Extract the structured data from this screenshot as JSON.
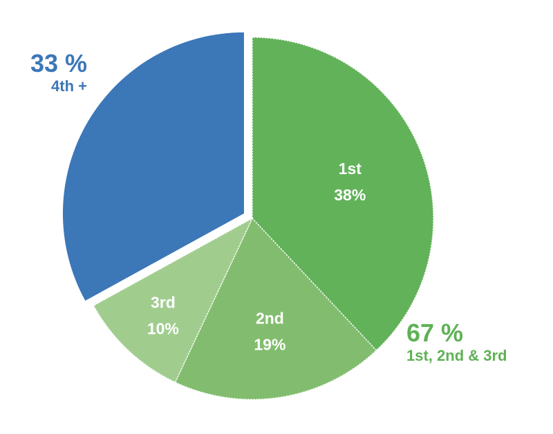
{
  "chart_data": {
    "type": "pie",
    "slices": [
      {
        "label": "1st",
        "value_text": "38%",
        "value": 38,
        "color": "#62b25a"
      },
      {
        "label": "2nd",
        "value_text": "19%",
        "value": 19,
        "color": "#82bd6f"
      },
      {
        "label": "3rd",
        "value_text": "10%",
        "value": 10,
        "color": "#a0cd8e"
      },
      {
        "label": "",
        "value_text": "",
        "value": 33,
        "color": "#3c77b8",
        "exploded": true
      }
    ],
    "annotations": {
      "left": {
        "value": "33 %",
        "label": "4th +",
        "color": "#3c77b8"
      },
      "right": {
        "value": "67 %",
        "label": "1st, 2nd & 3rd",
        "color": "#5fb155"
      }
    }
  }
}
